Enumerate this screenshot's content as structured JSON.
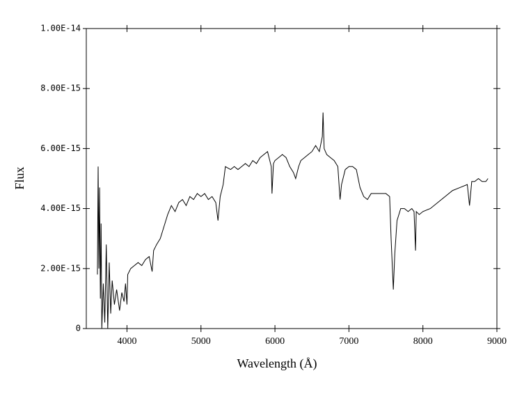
{
  "chart_data": {
    "type": "line",
    "xlabel": "Wavelength (Å)",
    "ylabel": "Flux",
    "color": "#000000",
    "x": [
      3600,
      3610,
      3620,
      3630,
      3640,
      3650,
      3660,
      3680,
      3700,
      3720,
      3740,
      3760,
      3780,
      3800,
      3830,
      3860,
      3900,
      3930,
      3960,
      3980,
      4000,
      4010,
      4050,
      4100,
      4150,
      4200,
      4250,
      4300,
      4340,
      4360,
      4400,
      4450,
      4500,
      4550,
      4600,
      4650,
      4700,
      4750,
      4800,
      4850,
      4900,
      4950,
      5000,
      5050,
      5100,
      5150,
      5200,
      5230,
      5260,
      5300,
      5330,
      5400,
      5450,
      5500,
      5550,
      5600,
      5650,
      5700,
      5750,
      5800,
      5850,
      5900,
      5950,
      5960,
      5980,
      6000,
      6050,
      6100,
      6150,
      6200,
      6250,
      6280,
      6320,
      6350,
      6400,
      6450,
      6500,
      6550,
      6600,
      6640,
      6650,
      6665,
      6700,
      6750,
      6800,
      6850,
      6880,
      6900,
      6950,
      7000,
      7050,
      7100,
      7150,
      7200,
      7250,
      7300,
      7400,
      7500,
      7550,
      7570,
      7600,
      7620,
      7650,
      7700,
      7750,
      7800,
      7850,
      7880,
      7900,
      7910,
      7950,
      8000,
      8100,
      8200,
      8300,
      8400,
      8500,
      8600,
      8630,
      8660,
      8700,
      8750,
      8800,
      8850,
      8880
    ],
    "values": [
      1.8e-15,
      5.4e-15,
      2e-15,
      4.7e-15,
      1e-15,
      3.5e-15,
      0,
      1.5e-15,
      2e-16,
      2.8e-15,
      0,
      2.2e-15,
      5e-16,
      1.6e-15,
      8e-16,
      1.3e-15,
      6e-16,
      1.2e-15,
      9e-16,
      1.5e-15,
      8e-16,
      1.8e-15,
      2e-15,
      2.1e-15,
      2.2e-15,
      2.1e-15,
      2.3e-15,
      2.4e-15,
      1.9e-15,
      2.6e-15,
      2.8e-15,
      3e-15,
      3.4e-15,
      3.8e-15,
      4.1e-15,
      3.9e-15,
      4.2e-15,
      4.3e-15,
      4.1e-15,
      4.4e-15,
      4.3e-15,
      4.5e-15,
      4.4e-15,
      4.5e-15,
      4.3e-15,
      4.4e-15,
      4.2e-15,
      3.6e-15,
      4.4e-15,
      4.8e-15,
      5.4e-15,
      5.3e-15,
      5.4e-15,
      5.3e-15,
      5.4e-15,
      5.5e-15,
      5.4e-15,
      5.6e-15,
      5.5e-15,
      5.7e-15,
      5.8e-15,
      5.9e-15,
      5.4e-15,
      4.5e-15,
      5.5e-15,
      5.6e-15,
      5.7e-15,
      5.8e-15,
      5.7e-15,
      5.4e-15,
      5.2e-15,
      5e-15,
      5.4e-15,
      5.6e-15,
      5.7e-15,
      5.8e-15,
      5.9e-15,
      6.1e-15,
      5.9e-15,
      6.4e-15,
      7.2e-15,
      6e-15,
      5.8e-15,
      5.7e-15,
      5.6e-15,
      5.4e-15,
      4.3e-15,
      4.8e-15,
      5.3e-15,
      5.4e-15,
      5.4e-15,
      5.3e-15,
      4.7e-15,
      4.4e-15,
      4.3e-15,
      4.5e-15,
      4.5e-15,
      4.5e-15,
      4.4e-15,
      3e-15,
      1.3e-15,
      2.5e-15,
      3.6e-15,
      4e-15,
      4e-15,
      3.9e-15,
      4e-15,
      3.9e-15,
      2.6e-15,
      3.9e-15,
      3.8e-15,
      3.9e-15,
      4e-15,
      4.2e-15,
      4.4e-15,
      4.6e-15,
      4.7e-15,
      4.8e-15,
      4.1e-15,
      4.9e-15,
      4.9e-15,
      5e-15,
      4.9e-15,
      4.9e-15,
      5e-15
    ],
    "xlim": [
      3450,
      9000
    ],
    "xticks": [
      4000,
      5000,
      6000,
      7000,
      8000,
      9000
    ],
    "ylim": [
      0,
      1e-14
    ],
    "yticks": [
      0,
      {
        "value": 2e-15,
        "label": "2.00E-15"
      },
      {
        "value": 4e-15,
        "label": "4.00E-15"
      },
      {
        "value": 6e-15,
        "label": "6.00E-15"
      },
      {
        "value": 8e-15,
        "label": "8.00E-15"
      },
      {
        "value": 1e-14,
        "label": "1.00E-14"
      }
    ]
  }
}
